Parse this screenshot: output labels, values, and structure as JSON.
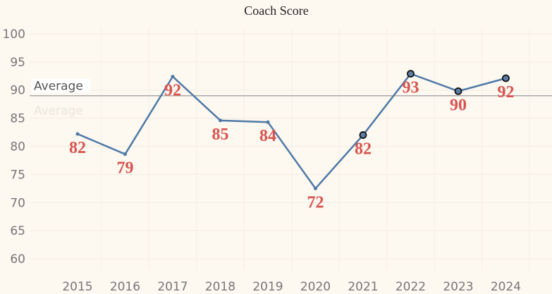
{
  "chart_data": {
    "type": "line",
    "title": "Coach Score",
    "xlabel": "",
    "ylabel": "",
    "categories": [
      "2015",
      "2016",
      "2017",
      "2018",
      "2019",
      "2020",
      "2021",
      "2022",
      "2023",
      "2024"
    ],
    "series": [
      {
        "values": [
          82,
          79,
          92,
          85,
          84,
          72,
          82,
          93,
          90,
          92
        ],
        "exact_values": [
          82.2,
          78.6,
          92.4,
          84.6,
          84.3,
          72.5,
          82.0,
          92.9,
          89.8,
          92.1
        ],
        "highlighted": [
          false,
          false,
          false,
          false,
          false,
          false,
          true,
          true,
          true,
          true
        ],
        "color": "#4e79a7"
      }
    ],
    "y_ticks": [
      "60",
      "65",
      "70",
      "75",
      "80",
      "85",
      "90",
      "95",
      "100"
    ],
    "ylim": [
      58,
      101
    ],
    "reference_line": {
      "label": "Average",
      "value": 89,
      "color": "#aaaaaa"
    },
    "label_color": "#d9534f",
    "background": "#fdf8f0",
    "grid": true,
    "legend": "none"
  }
}
